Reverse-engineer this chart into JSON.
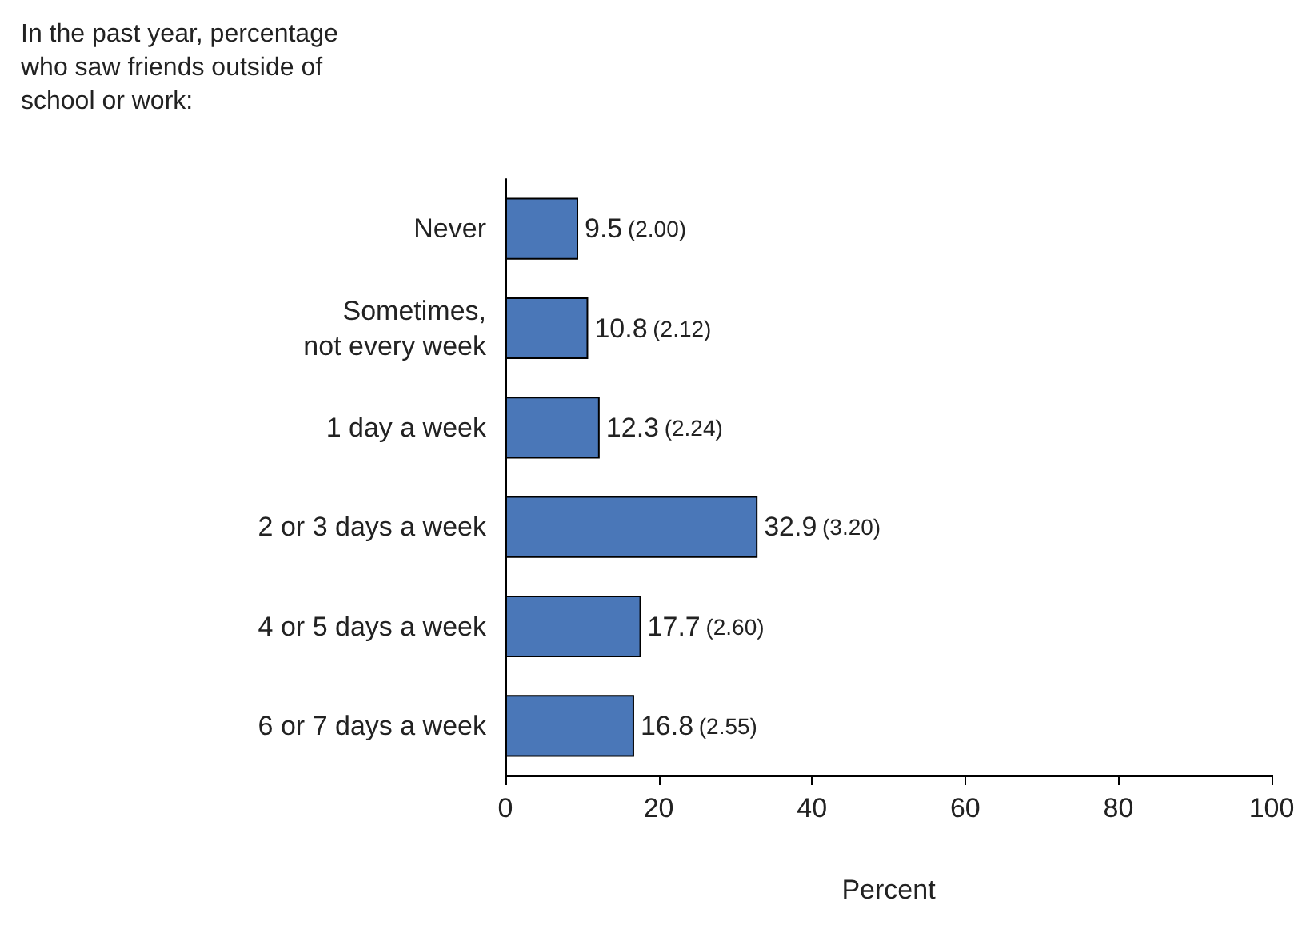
{
  "chart_data": {
    "type": "bar",
    "orientation": "horizontal",
    "title": "In the past year, percentage who saw friends outside of school or work:",
    "xlabel": "Percent",
    "categories": [
      "Never",
      "Sometimes,\nnot every week",
      "1 day a week",
      "2 or 3 days a week",
      "4 or 5 days a week",
      "6 or 7 days a week"
    ],
    "values": [
      9.5,
      10.8,
      12.3,
      32.9,
      17.7,
      16.8
    ],
    "value_labels": [
      "9.5 (2.00)",
      "10.8 (2.12)",
      "12.3 (2.24)",
      "32.9 (3.20)",
      "17.7 (2.60)",
      "16.8 (2.55)"
    ],
    "color": "#4a77b8",
    "xlim": [
      0,
      100
    ],
    "xticks": [
      0,
      20,
      40,
      60,
      80,
      100
    ]
  }
}
